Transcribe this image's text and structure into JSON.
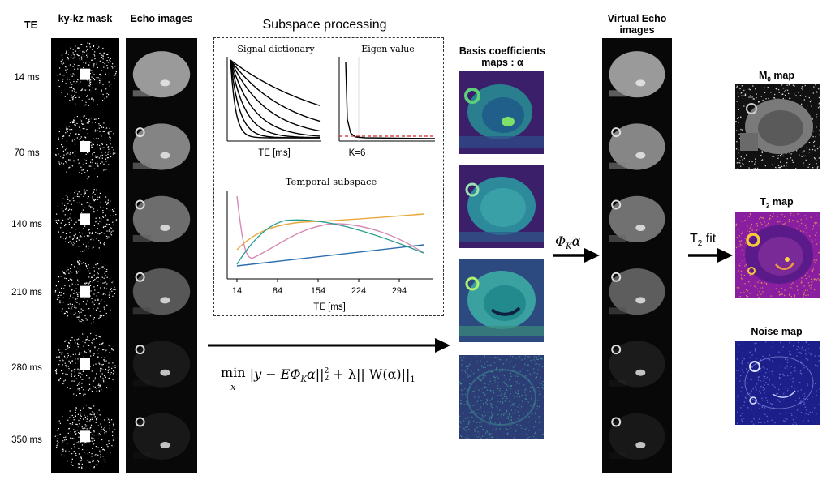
{
  "te_column": {
    "header": "TE",
    "rows": [
      "14 ms",
      "70 ms",
      "140 ms",
      "210 ms",
      "280 ms",
      "350 ms"
    ]
  },
  "headers": {
    "mask": "ky-kz mask",
    "echo": "Echo images",
    "subspace": "Subspace processing",
    "coeff": "Basis coefficients maps : α",
    "virtual": "Virtual Echo images"
  },
  "subspace": {
    "dictionary_title": "Signal dictionary",
    "dictionary_xlabel": "TE [ms]",
    "eigen_title": "Eigen value",
    "eigen_xlabel": "K=6",
    "temporal_title": "Temporal subspace",
    "temporal_xlabel": "TE [ms]",
    "temporal_ticks": [
      "14",
      "84",
      "154",
      "224",
      "294"
    ]
  },
  "equation": {
    "min": "min",
    "sub": "x",
    "body": "|y − EΦ",
    "k": "K",
    "rest": "α||",
    "sq": "2",
    "two": "2",
    "plus": " + λ|| W(α)||",
    "one": "1"
  },
  "arrows": {
    "phi_label": "Φ",
    "phi_sub": "K",
    "phi_alpha": "α",
    "t2fit_label": "T",
    "t2fit_sub": "2",
    "t2fit_rest": " fit"
  },
  "maps": {
    "m0_prefix": "M",
    "m0_sub": "0",
    "m0_rest": " map",
    "t2_prefix": "T",
    "t2_sub": "2",
    "t2_rest": " map",
    "noise": "Noise map"
  },
  "colors": {
    "viridis_dark": "#3b1f6b",
    "viridis_mid": "#2a8f8a",
    "plasma_bg": "#8a1ea0",
    "noise_bg": "#1c1f8a",
    "subspace_teal": "#2a9d8f",
    "subspace_orange": "#e9a83a",
    "subspace_pink": "#d58ab5",
    "subspace_blue": "#2b6cb0",
    "eigen_red": "#d62728"
  }
}
